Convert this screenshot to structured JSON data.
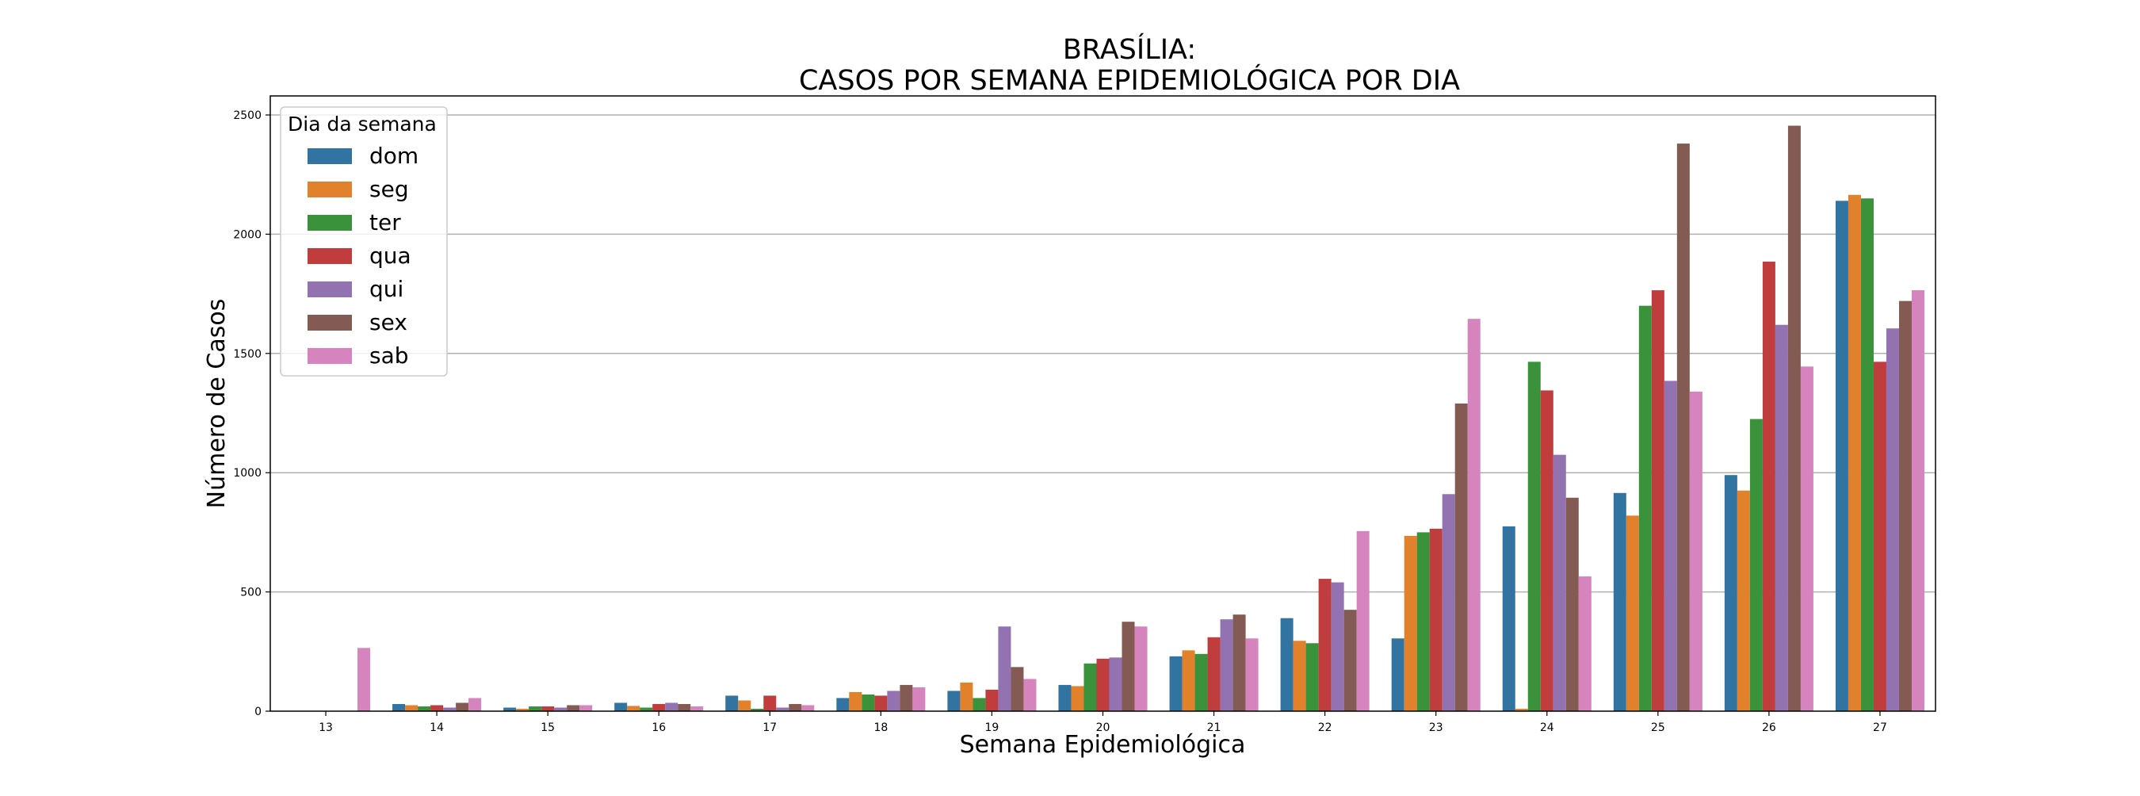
{
  "chart_data": {
    "type": "bar",
    "title_line1": "BRASÍLIA:",
    "title_line2": "CASOS POR SEMANA EPIDEMIOLÓGICA POR DIA",
    "xlabel": "Semana Epidemiológica",
    "ylabel": "Número de Casos",
    "categories": [
      "13",
      "14",
      "15",
      "16",
      "17",
      "18",
      "19",
      "20",
      "21",
      "22",
      "23",
      "24",
      "25",
      "26",
      "27"
    ],
    "y_ticks": [
      0,
      500,
      1000,
      1500,
      2000,
      2500
    ],
    "ylim": [
      0,
      2580
    ],
    "grid": "horizontal",
    "legend_title": "Dia da semana",
    "legend_position": "top-left",
    "series": [
      {
        "name": "dom",
        "color": "#3274a1",
        "values": [
          0,
          30,
          15,
          35,
          65,
          55,
          85,
          110,
          230,
          390,
          305,
          775,
          915,
          990,
          2140
        ]
      },
      {
        "name": "seg",
        "color": "#e1812c",
        "values": [
          0,
          25,
          10,
          22,
          45,
          80,
          120,
          105,
          255,
          295,
          735,
          10,
          820,
          925,
          2165
        ]
      },
      {
        "name": "ter",
        "color": "#3a923a",
        "values": [
          0,
          20,
          20,
          15,
          10,
          70,
          55,
          200,
          240,
          285,
          750,
          1465,
          1700,
          1225,
          2150
        ]
      },
      {
        "name": "qua",
        "color": "#c03d3e",
        "values": [
          0,
          25,
          20,
          30,
          65,
          65,
          90,
          220,
          310,
          555,
          765,
          1345,
          1765,
          1885,
          1465
        ]
      },
      {
        "name": "qui",
        "color": "#9372b2",
        "values": [
          0,
          15,
          15,
          35,
          15,
          85,
          355,
          225,
          385,
          540,
          910,
          1075,
          1385,
          1620,
          1605
        ]
      },
      {
        "name": "sex",
        "color": "#845b53",
        "values": [
          0,
          35,
          25,
          30,
          30,
          110,
          185,
          375,
          405,
          425,
          1290,
          895,
          2380,
          2455,
          1720
        ]
      },
      {
        "name": "sab",
        "color": "#d684bd",
        "values": [
          265,
          55,
          25,
          20,
          25,
          100,
          135,
          355,
          305,
          755,
          1645,
          565,
          1340,
          1445,
          1765
        ]
      }
    ]
  }
}
